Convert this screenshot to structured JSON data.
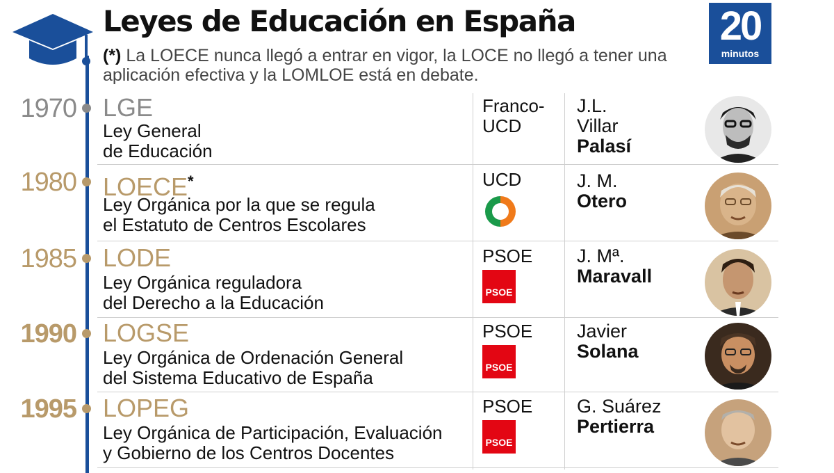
{
  "header": {
    "title": "Leyes de Educación en España",
    "note_mark": "(*)",
    "note_text": " La LOECE nunca llegó a entrar en vigor, la LOCE no llegó a tener una aplicación efectiva y la LOMLOE está en debate."
  },
  "brand": {
    "number": "20",
    "word": "minutos",
    "color": "#1a4f9a"
  },
  "colors": {
    "timeline": "#1a4f9a",
    "year_early": "#8a8a8a",
    "year_later": "#b89a6a",
    "psoe_red": "#e30613",
    "ucd_green": "#1a9a4a",
    "ucd_orange": "#f07a1a"
  },
  "laws": [
    {
      "year": "1970",
      "acronym": "LGE",
      "asterisk": "",
      "desc_line1": "Ley General",
      "desc_line2": "de Educación",
      "party_line1": "Franco-",
      "party_line2": "UCD",
      "party_logo": "none",
      "minister_line1": "J.L.",
      "minister_line2": "Villar",
      "minister_last": "Palasí"
    },
    {
      "year": "1980",
      "acronym": "LOECE",
      "asterisk": "*",
      "desc_line1": "Ley Orgánica por la que se regula",
      "desc_line2": "el Estatuto de Centros Escolares",
      "party_line1": "UCD",
      "party_line2": "",
      "party_logo": "ucd-logo-icon",
      "minister_line1": "J. M.",
      "minister_line2": "",
      "minister_last": "Otero"
    },
    {
      "year": "1985",
      "acronym": "LODE",
      "asterisk": "",
      "desc_line1": "Ley Orgánica reguladora",
      "desc_line2": "del Derecho a la Educación",
      "party_line1": "PSOE",
      "party_line2": "",
      "party_logo": "psoe-logo-icon",
      "logo_text": "PSOE",
      "minister_line1": "J. Mª.",
      "minister_line2": "",
      "minister_last": "Maravall"
    },
    {
      "year": "1990",
      "acronym": "LOGSE",
      "asterisk": "",
      "desc_line1": "Ley Orgánica de Ordenación General",
      "desc_line2": "del Sistema Educativo de España",
      "party_line1": "PSOE",
      "party_line2": "",
      "party_logo": "psoe-logo-icon",
      "logo_text": "PSOE",
      "minister_line1": "Javier",
      "minister_line2": "",
      "minister_last": "Solana"
    },
    {
      "year": "1995",
      "acronym": "LOPEG",
      "asterisk": "",
      "desc_line1": "Ley Orgánica de Participación, Evaluación",
      "desc_line2": "y Gobierno de los Centros Docentes",
      "party_line1": "PSOE",
      "party_line2": "",
      "party_logo": "psoe-logo-icon",
      "logo_text": "PSOE",
      "minister_line1": "G. Suárez",
      "minister_line2": "",
      "minister_last": "Pertierra"
    }
  ]
}
